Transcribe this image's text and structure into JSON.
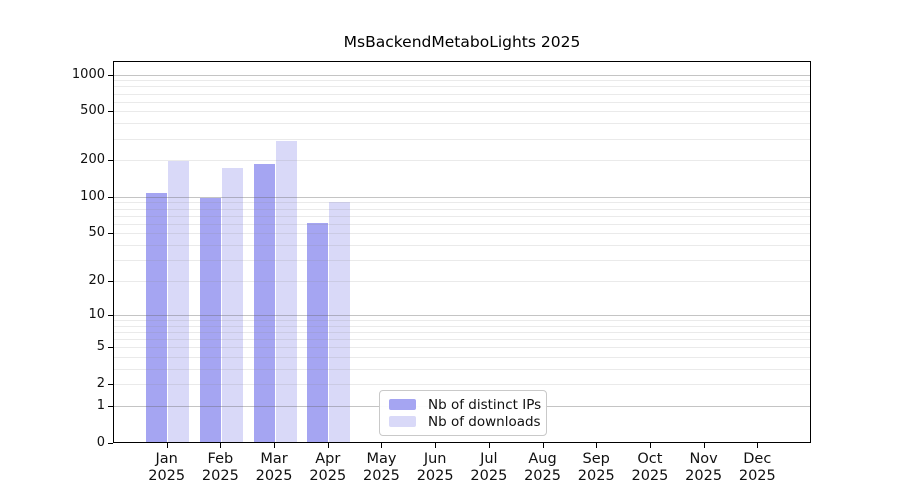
{
  "chart_data": {
    "type": "bar",
    "title": "MsBackendMetaboLights 2025",
    "categories": [
      "Jan",
      "Feb",
      "Mar",
      "Apr",
      "May",
      "Jun",
      "Jul",
      "Aug",
      "Sep",
      "Oct",
      "Nov",
      "Dec"
    ],
    "x_tick_year": "2025",
    "series": [
      {
        "name": "Nb of distinct IPs",
        "color": "#a5a5f2",
        "values": [
          110,
          100,
          190,
          62,
          0,
          0,
          0,
          0,
          0,
          0,
          0,
          0
        ]
      },
      {
        "name": "Nb of downloads",
        "color": "#d9d9f8",
        "values": [
          200,
          175,
          290,
          93,
          0,
          0,
          0,
          0,
          0,
          0,
          0,
          0
        ]
      }
    ],
    "yscale": "log1p",
    "y_ticks": [
      0,
      1,
      2,
      5,
      10,
      20,
      50,
      100,
      200,
      500,
      1000
    ],
    "ylim": [
      0,
      1300
    ],
    "grid": true,
    "legend_position": "lower center",
    "colors": {
      "major_gridline": "#c7c7c7",
      "minor_gridline": "#eaeaea",
      "axis": "#000000"
    }
  }
}
